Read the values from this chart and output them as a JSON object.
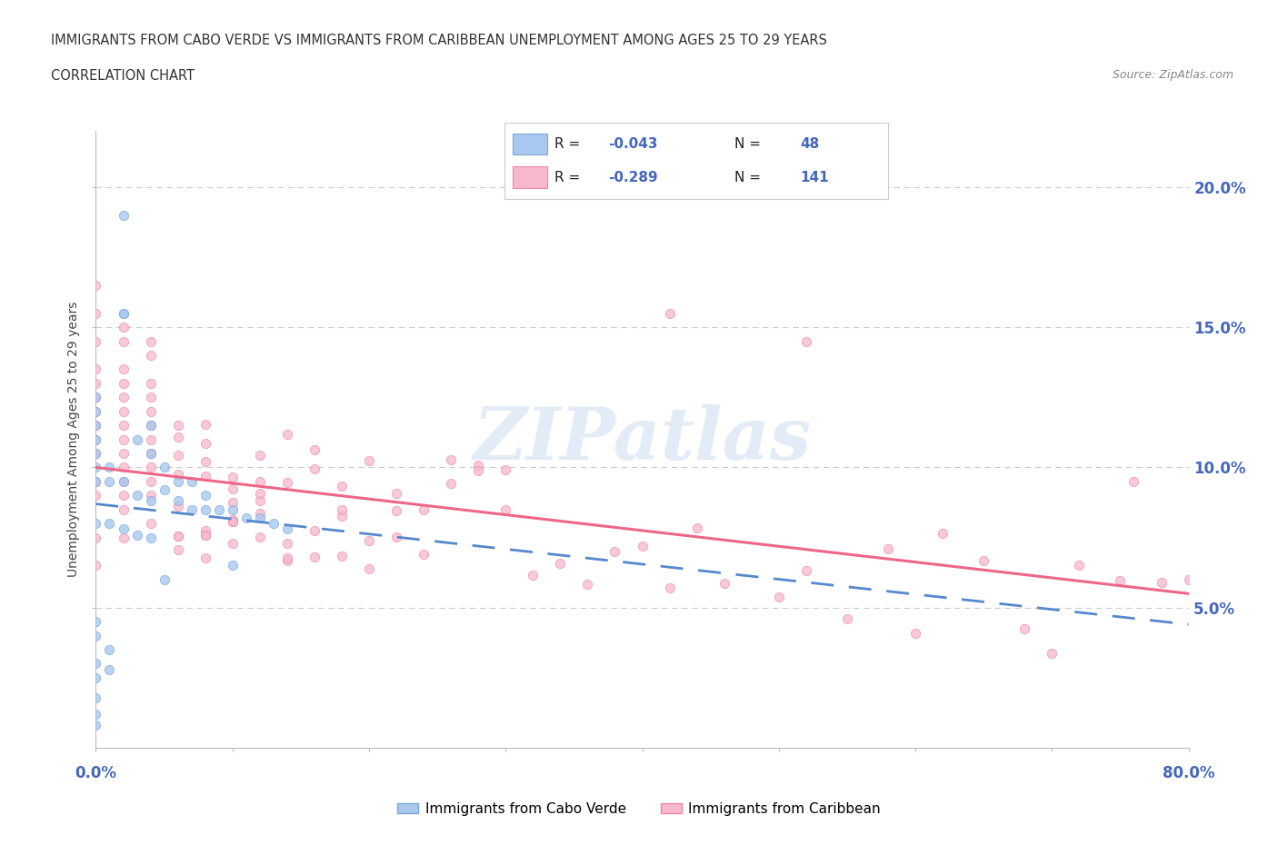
{
  "title_line1": "IMMIGRANTS FROM CABO VERDE VS IMMIGRANTS FROM CARIBBEAN UNEMPLOYMENT AMONG AGES 25 TO 29 YEARS",
  "title_line2": "CORRELATION CHART",
  "source": "Source: ZipAtlas.com",
  "ylabel": "Unemployment Among Ages 25 to 29 years",
  "cabo_verde_color": "#a8c8f0",
  "cabo_verde_edge": "#7aaad8",
  "caribbean_color": "#f8b8cc",
  "caribbean_edge": "#e888a8",
  "cabo_trend_color": "#5588cc",
  "carib_trend_color": "#ee6688",
  "grid_color": "#cccccc",
  "right_label_color": "#4466bb",
  "xlim": [
    0.0,
    0.8
  ],
  "ylim": [
    0.0,
    0.22
  ],
  "yticks": [
    0.05,
    0.1,
    0.15,
    0.2
  ],
  "ytick_labels": [
    "5.0%",
    "10.0%",
    "15.0%",
    "20.0%"
  ],
  "watermark_color": "#c8d8ee",
  "watermark_alpha": 0.5
}
